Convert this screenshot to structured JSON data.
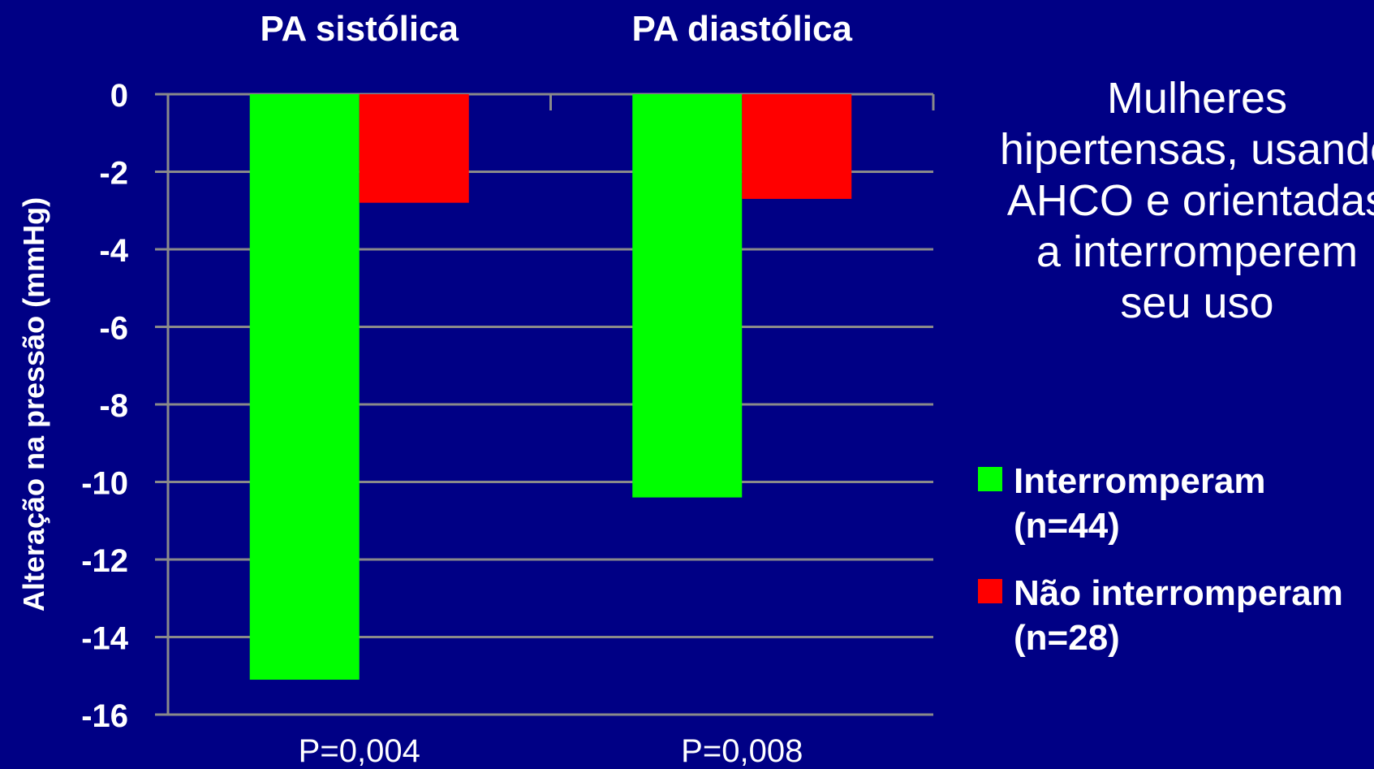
{
  "chart_data": {
    "type": "bar",
    "categories": [
      "PA sistólica",
      "PA diastólica"
    ],
    "category_position": "top",
    "series": [
      {
        "name": "Interromperam\n(n=44)",
        "values": [
          -15.1,
          -10.4
        ],
        "color": "#00ff00"
      },
      {
        "name": "Não interromperam\n(n=28)",
        "values": [
          -2.8,
          -2.7
        ],
        "color": "#ff0000"
      }
    ],
    "p_values": [
      "P=0,004",
      "P=0,008"
    ],
    "ylabel": "Alteração na pressão (mmHg)",
    "ylim": [
      -16,
      0
    ],
    "yticks": [
      "0",
      "-2",
      "-4",
      "-6",
      "-8",
      "-10",
      "-12",
      "-14",
      "-16"
    ],
    "grid": true,
    "legend_position": "right",
    "annotation": "Mulheres\nhipertensas, usando\nAHCO e orientadas\na interromperem\nseu uso",
    "colors": {
      "background": "#000085",
      "gridline": "#8a8a8a",
      "text": "#ffffff"
    }
  }
}
